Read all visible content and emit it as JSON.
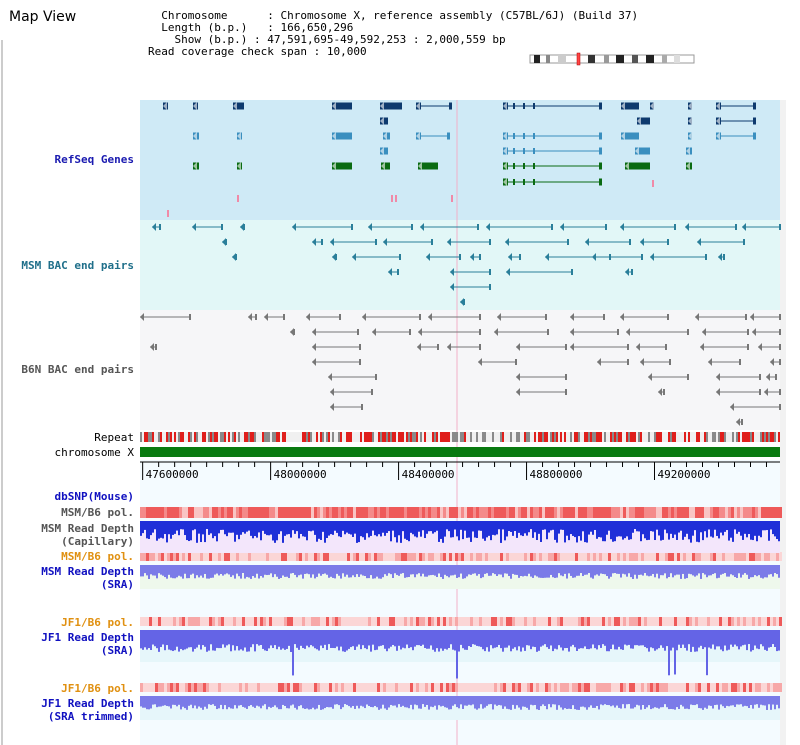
{
  "app": {
    "title": "Map View"
  },
  "header": {
    "chromosome_label": "Chromosome",
    "chromosome_value": "Chromosome X, reference assembly (C57BL/6J) (Build 37)",
    "length_label": "Length (b.p.)",
    "length_value": "166,650,296",
    "show_label": "Show (b.p.)",
    "show_value": "47,591,695-49,592,253 : 2,000,559 bp",
    "coverage_label": "Read coverage check span",
    "coverage_value": "10,000"
  },
  "tracks": {
    "refseq": "RefSeq Genes",
    "msm_bac": "MSM BAC end pairs",
    "b6n_bac": "B6N BAC end pairs",
    "repeat": "Repeat",
    "chromosome": "chromosome X",
    "dbsnp": "dbSNP(Mouse)",
    "msm_b6_pol_1": "MSM/B6 pol.",
    "msm_read_depth_cap_1": "MSM Read Depth",
    "msm_read_depth_cap_2": "(Capillary)",
    "msm_b6_pol_2": "MSM/B6 pol.",
    "msm_read_depth_sra_1": "MSM Read Depth",
    "msm_read_depth_sra_2": "(SRA)",
    "jf1_b6_pol_1": "JF1/B6 pol.",
    "jf1_read_depth_1": "JF1 Read Depth",
    "jf1_read_depth_2": "(SRA)",
    "jf1_b6_pol_2": "JF1/B6 pol.",
    "jf1_read_depth_trim_1": "JF1 Read Depth",
    "jf1_read_depth_trim_2": "(SRA trimmed)"
  },
  "axis": {
    "ticks": [
      "47600000",
      "48000000",
      "48400000",
      "48800000",
      "49200000"
    ],
    "tick_values": [
      47600000,
      48000000,
      48400000,
      48800000,
      49200000
    ],
    "range": [
      47591695,
      49592253
    ]
  },
  "colors": {
    "refseq_bg": "#cfeaf6",
    "msm_bac_bg": "#e2f7f7",
    "b6n_bg": "#f6f6f8",
    "gene_dark": "#0e3a6e",
    "gene_mid": "#3a8fbf",
    "gene_green": "#0a6b12",
    "bac_teal": "#2a7f9a",
    "bac_gray": "#777777",
    "chrom_green": "#0a7a10",
    "depth_blue": "#1f2fd8",
    "depth_light": "#7b7be8",
    "pol_red": "#e84040",
    "pol_pink": "#f6b8b8"
  }
}
